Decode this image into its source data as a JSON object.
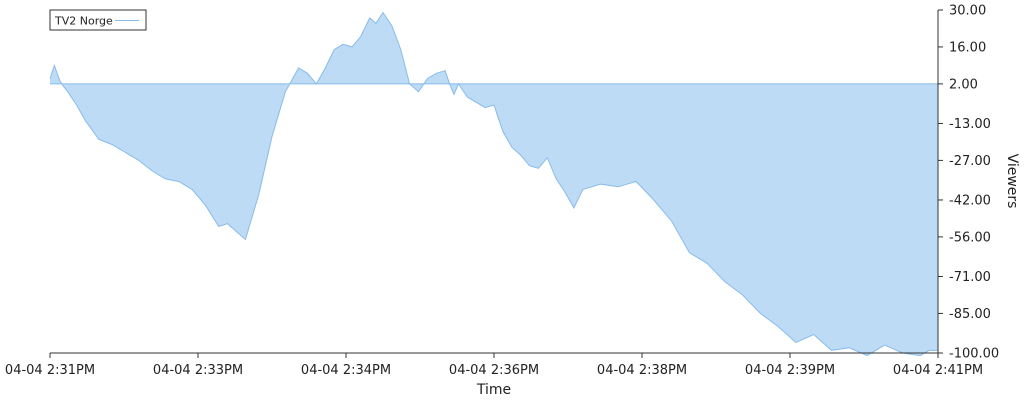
{
  "chart_data": {
    "type": "area",
    "xlabel": "Time",
    "ylabel": "Viewers",
    "legend": {
      "position": "top-left",
      "entries": [
        "TV2 Norge"
      ]
    },
    "x_tick_labels": [
      "04-04 2:31PM",
      "04-04 2:33PM",
      "04-04 2:34PM",
      "04-04 2:36PM",
      "04-04 2:38PM",
      "04-04 2:39PM",
      "04-04 2:41PM"
    ],
    "y_tick_labels": [
      "30.00",
      "16.00",
      "2.00",
      "-13.00",
      "-27.00",
      "-42.00",
      "-56.00",
      "-71.00",
      "-85.00",
      "-100.00"
    ],
    "y_ticks": [
      30,
      16,
      2,
      -13,
      -27,
      -42,
      -56,
      -71,
      -85,
      -100
    ],
    "ylim": [
      -100,
      30
    ],
    "baseline": 2,
    "x_range_minutes": [
      0,
      10
    ],
    "grid": false,
    "colors": {
      "fill": "#bddbf5",
      "stroke": "#88bbea",
      "axis": "#333333"
    },
    "series": [
      {
        "name": "TV2 Norge",
        "x": [
          0,
          0.05,
          0.09,
          0.13,
          0.2,
          0.3,
          0.4,
          0.55,
          0.7,
          0.85,
          1.0,
          1.15,
          1.3,
          1.45,
          1.6,
          1.75,
          1.9,
          2.0,
          2.2,
          2.35,
          2.5,
          2.65,
          2.8,
          2.9,
          3.0,
          3.1,
          3.2,
          3.3,
          3.4,
          3.5,
          3.6,
          3.67,
          3.75,
          3.85,
          3.95,
          4.05,
          4.15,
          4.25,
          4.35,
          4.45,
          4.5,
          4.55,
          4.6,
          4.7,
          4.8,
          4.9,
          5.0,
          5.05,
          5.1,
          5.2,
          5.3,
          5.4,
          5.5,
          5.6,
          5.7,
          5.8,
          5.9,
          6.0,
          6.2,
          6.4,
          6.6,
          6.8,
          7.0,
          7.2,
          7.4,
          7.6,
          7.8,
          8.0,
          8.2,
          8.4,
          8.6,
          8.8,
          9.0,
          9.2,
          9.4,
          9.6,
          9.8,
          9.9,
          10.0
        ],
        "values": [
          4,
          9,
          5,
          2,
          -1,
          -6,
          -12,
          -19,
          -21,
          -24,
          -27,
          -31,
          -34,
          -35,
          -38,
          -44,
          -52,
          -51,
          -57,
          -40,
          -18,
          -1,
          8,
          6,
          2,
          8,
          15,
          17,
          16,
          20,
          27,
          25,
          29,
          24,
          15,
          2,
          -1,
          4,
          6,
          7,
          2,
          -2,
          2,
          -3,
          -5,
          -7,
          -6,
          -11,
          -16,
          -22,
          -25,
          -29,
          -30,
          -26,
          -34,
          -39,
          -45,
          -38,
          -36,
          -37,
          -35,
          -42,
          -50,
          -62,
          -66,
          -73,
          -78,
          -85,
          -90,
          -96,
          -93,
          -99,
          -98,
          -101,
          -97,
          -100,
          -101,
          -99,
          -99
        ]
      }
    ]
  }
}
